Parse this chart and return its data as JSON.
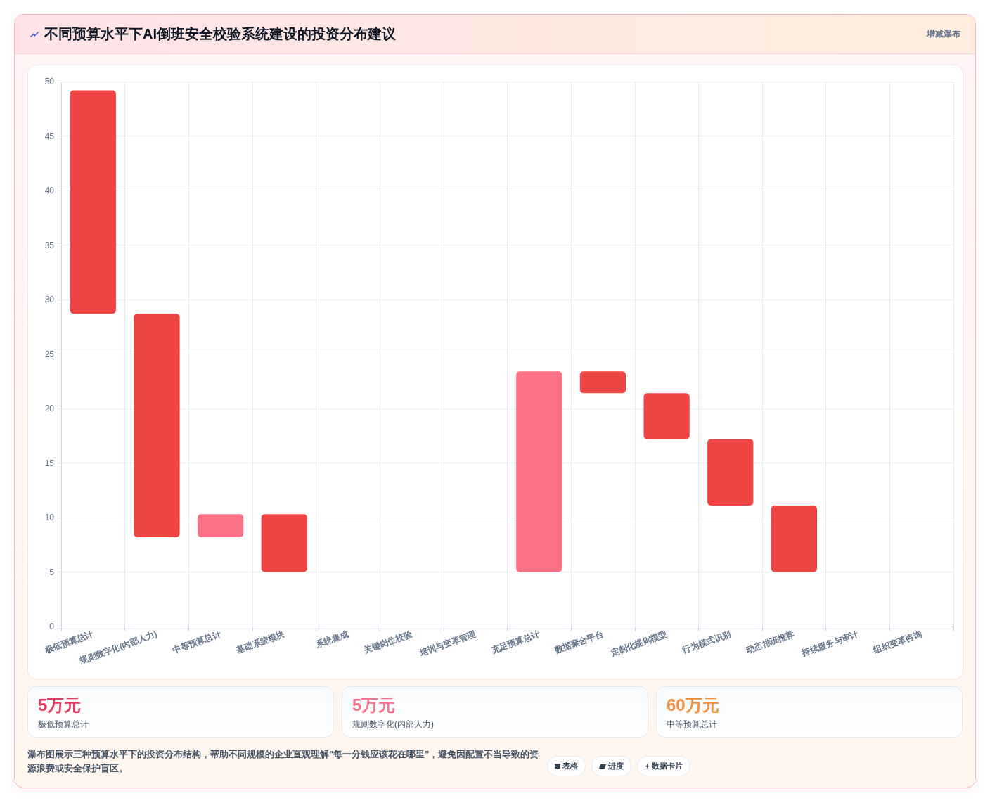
{
  "chart_data": {
    "type": "bar",
    "title": "不同预算水平下AI倒班安全校验系统建设的投资分布建议",
    "subtitle": "增减瀑布",
    "categories": [
      "极低预算总计",
      "规则数字化(内部人力)",
      "中等预算总计",
      "基础系统模块",
      "系统集成",
      "关键岗位校验",
      "培训与变革管理",
      "充足预算总计",
      "数据聚合平台",
      "定制化规则模型",
      "行为模式识别",
      "动态排班推荐",
      "持续服务与审计",
      "组织变革咨询"
    ],
    "base": [
      28.7,
      8.2,
      8.2,
      5,
      null,
      null,
      null,
      5,
      21.4,
      17.2,
      11.1,
      5,
      null,
      null
    ],
    "values": [
      20.5,
      20.5,
      2.1,
      5.3,
      null,
      null,
      null,
      18.4,
      2,
      4.2,
      6.1,
      6.1,
      null,
      null
    ],
    "colors": [
      "#ef4444",
      "#ef4444",
      "#fb7185",
      "#ef4444",
      null,
      null,
      null,
      "#fb7185",
      "#ef4444",
      "#ef4444",
      "#ef4444",
      "#ef4444",
      null,
      null
    ],
    "ylim": [
      0,
      50
    ],
    "yticks": [
      0,
      5,
      10,
      15,
      20,
      25,
      30,
      35,
      40,
      45,
      50
    ],
    "grid": true,
    "annotations": [
      "5万元",
      "极低预算总计",
      "5万元",
      "规则数字化(内部人力)",
      "60万元",
      "中等预算总计",
      "瀑布图展示三种预算水平下的投资分布结构，帮助不同规模的企业直观理解\"每一分钱应该花在哪里\"，避免因配置不当导致的资源浪费或安全保护盲区。",
      "表格",
      "进度",
      "数据卡片"
    ]
  }
}
